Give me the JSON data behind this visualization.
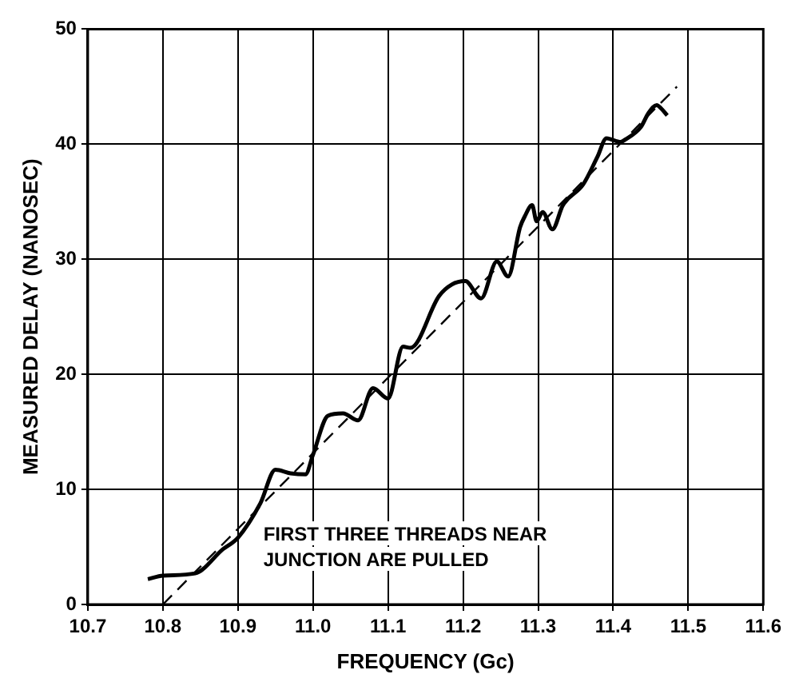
{
  "chart_data": {
    "type": "line",
    "xlabel": "FREQUENCY (Gc)",
    "ylabel": "MEASURED DELAY (NANOSEC)",
    "xlim": [
      10.7,
      11.6
    ],
    "xticks": [
      {
        "value": 10.7,
        "label": "10.7"
      },
      {
        "value": 10.8,
        "label": "10.8"
      },
      {
        "value": 10.9,
        "label": "10.9"
      },
      {
        "value": 11.0,
        "label": "11.0"
      },
      {
        "value": 11.1,
        "label": "11.1"
      },
      {
        "value": 11.2,
        "label": "11.2"
      },
      {
        "value": 11.3,
        "label": "11.3"
      },
      {
        "value": 11.4,
        "label": "11.4"
      },
      {
        "value": 11.5,
        "label": "11.5"
      },
      {
        "value": 11.6,
        "label": "11.6"
      }
    ],
    "ylim": [
      0,
      50
    ],
    "yticks": [
      0,
      10,
      20,
      30,
      40,
      50
    ],
    "grid": true,
    "marker": "none",
    "series": [
      {
        "color": "#000000",
        "line_style": "solid",
        "x": [
          10.78,
          10.8,
          10.843,
          10.88,
          10.9,
          10.93,
          10.95,
          10.97,
          10.99,
          11.0,
          11.02,
          11.04,
          11.06,
          11.08,
          11.1,
          11.12,
          11.13,
          11.168,
          11.185,
          11.203,
          11.224,
          11.245,
          11.26,
          11.276,
          11.282,
          11.292,
          11.298,
          11.306,
          11.319,
          11.333,
          11.36,
          11.379,
          11.391,
          11.41,
          11.416,
          11.437,
          11.447,
          11.458,
          11.464,
          11.472
        ],
        "values": [
          2.2,
          2.5,
          2.7,
          4.8,
          5.8,
          8.8,
          11.7,
          11.4,
          11.3,
          13,
          16.4,
          16.6,
          16,
          18.8,
          17.9,
          22.4,
          22.3,
          26.8,
          27.8,
          28.1,
          26.6,
          29.8,
          28.5,
          32.8,
          33.7,
          34.7,
          33.3,
          34.1,
          32.6,
          34.7,
          36.5,
          38.9,
          40.5,
          40.2,
          40.4,
          41.5,
          42.7,
          43.4,
          43.1,
          42.5
        ]
      },
      {
        "type": "line",
        "color": "#000000",
        "line_style": "dashed",
        "x": [
          10.8,
          11.485
        ],
        "values": [
          0,
          45
        ]
      }
    ],
    "annotations": [
      "FIRST THREE THREADS NEAR\nJUNCTION ARE PULLED"
    ]
  }
}
